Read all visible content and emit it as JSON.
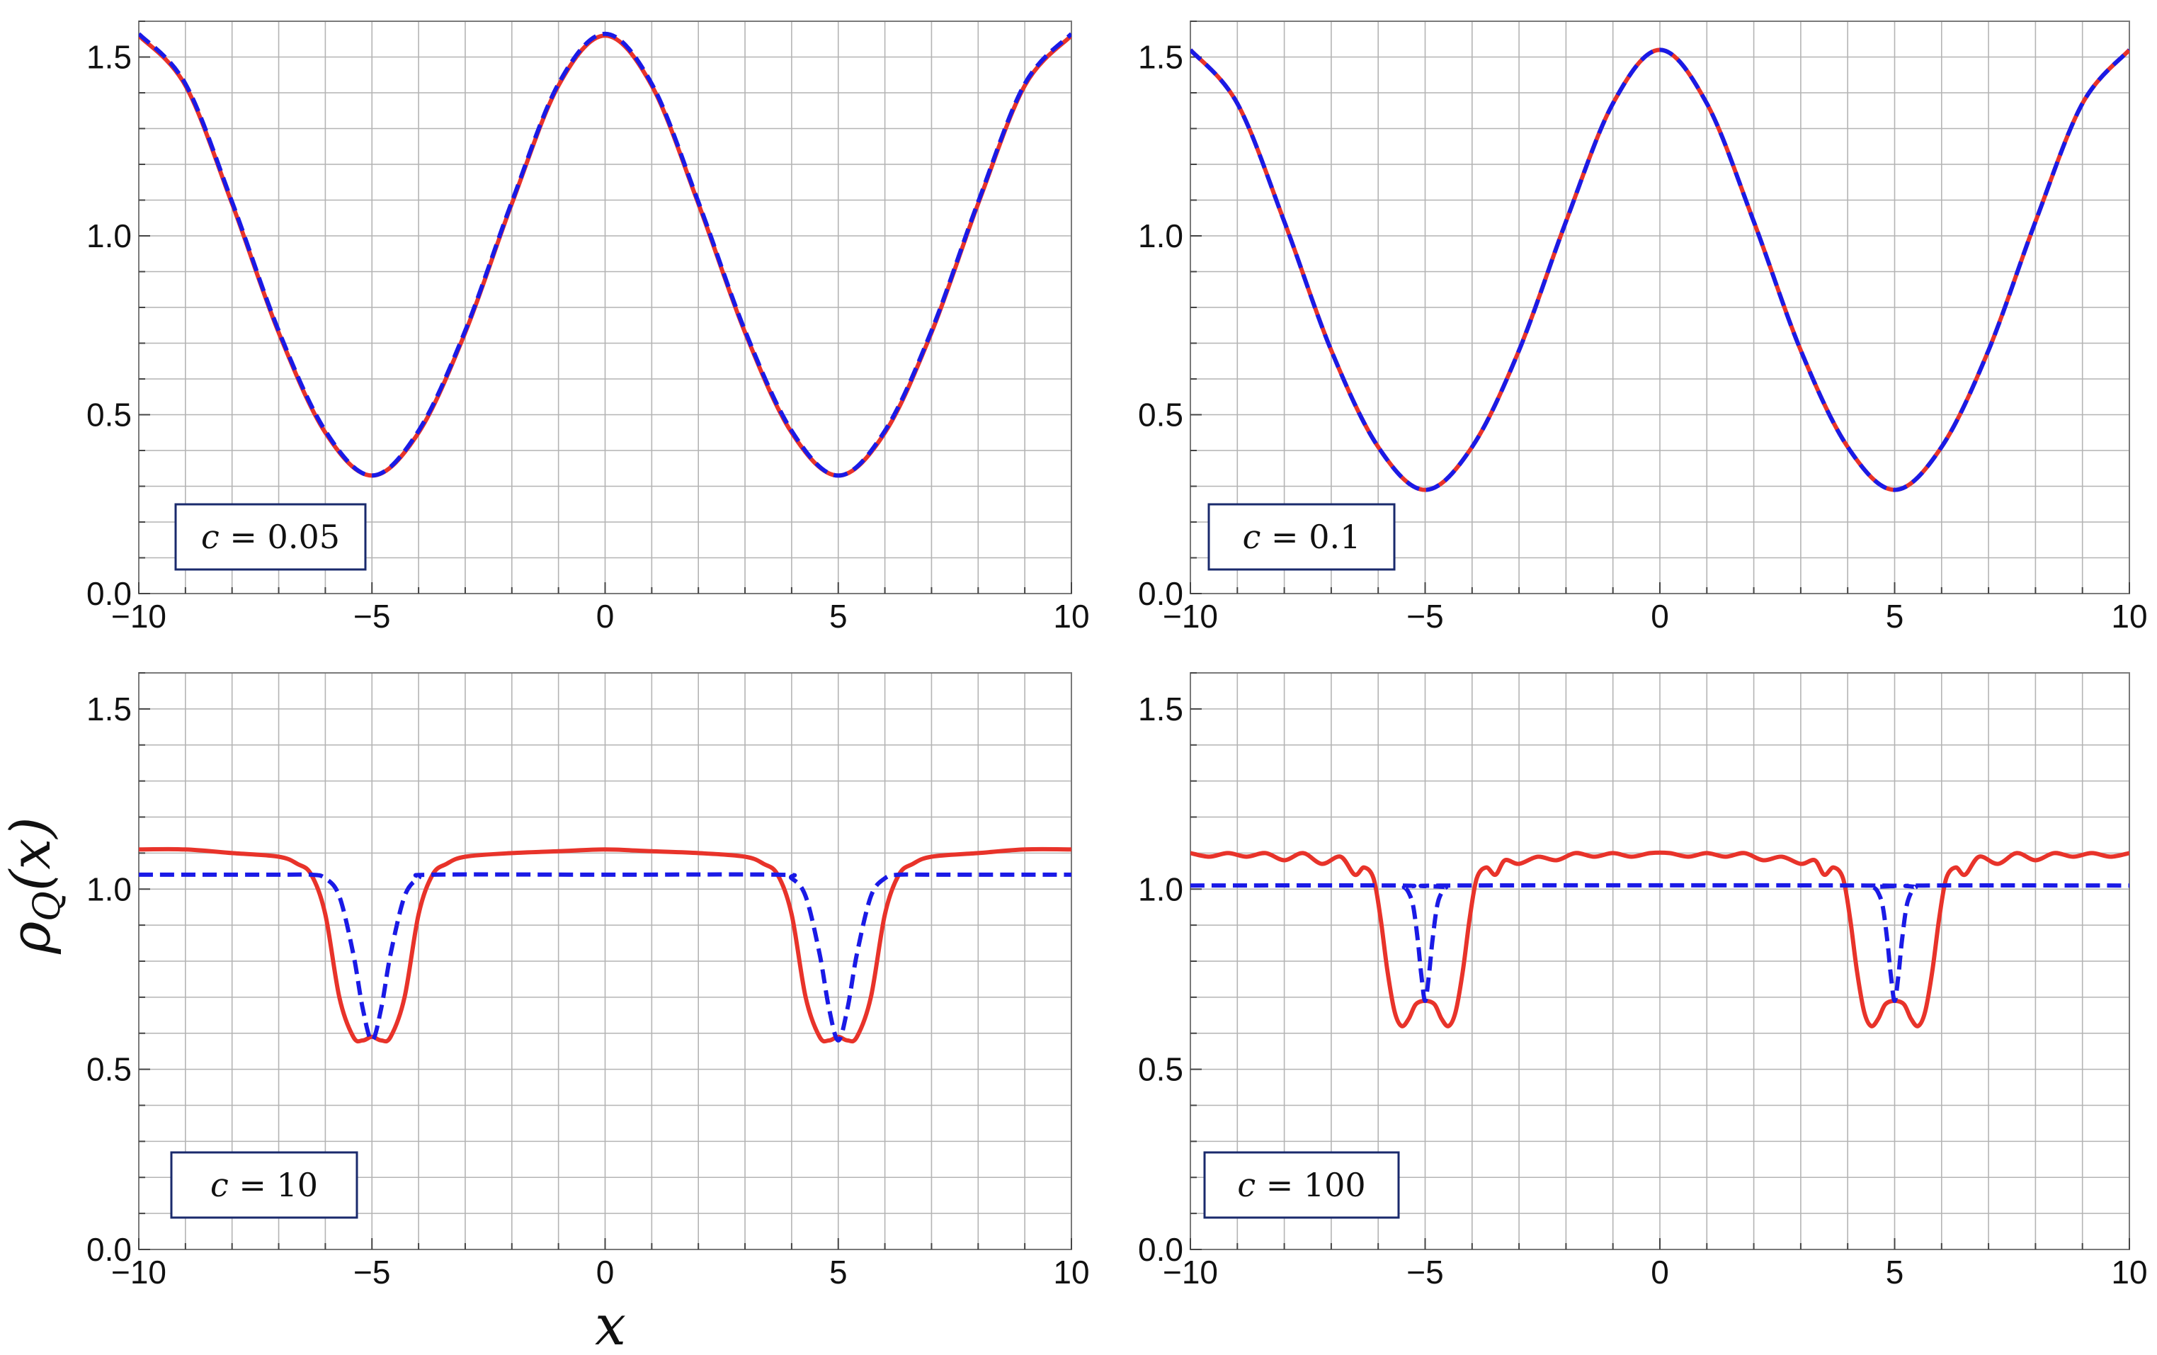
{
  "figure": {
    "shared_ylabel": "ρQ(x)",
    "shared_xlabel": "x",
    "colors": {
      "solid_series": "#e8332a",
      "dashed_series": "#1a1ae6",
      "grid": "#b4b4b4",
      "frame": "#7a7a7a",
      "label_box_border": "#1a2a6c"
    }
  },
  "chart_data": [
    {
      "type": "line",
      "panel": "top-left",
      "annotation": "c = 0.05",
      "xlim": [
        -10,
        10
      ],
      "ylim": [
        0,
        1.6
      ],
      "xticks": [
        -10,
        -5,
        0,
        5,
        10
      ],
      "xtick_labels": [
        "−10",
        "−5",
        "0",
        "5",
        "10"
      ],
      "yticks": [
        0,
        0.5,
        1,
        1.5
      ],
      "ytick_labels": [
        "0.0",
        "0.5",
        "1.0",
        "1.5"
      ],
      "grid": true,
      "series": [
        {
          "style": "solid",
          "x": [
            -10,
            -9,
            -8,
            -7,
            -6,
            -5,
            -4,
            -3,
            -2,
            -1,
            0,
            1,
            2,
            3,
            4,
            5,
            6,
            7,
            8,
            9,
            10
          ],
          "y": [
            1.56,
            1.42,
            1.09,
            0.73,
            0.45,
            0.33,
            0.45,
            0.73,
            1.09,
            1.42,
            1.56,
            1.42,
            1.09,
            0.73,
            0.45,
            0.33,
            0.45,
            0.73,
            1.09,
            1.42,
            1.56
          ]
        },
        {
          "style": "dashed",
          "x": [
            -10,
            -9,
            -8,
            -7,
            -6,
            -5,
            -4,
            -3,
            -2,
            -1,
            0,
            1,
            2,
            3,
            4,
            5,
            6,
            7,
            8,
            9,
            10
          ],
          "y": [
            1.565,
            1.425,
            1.095,
            0.735,
            0.455,
            0.33,
            0.455,
            0.735,
            1.095,
            1.425,
            1.565,
            1.425,
            1.095,
            0.735,
            0.455,
            0.33,
            0.455,
            0.735,
            1.095,
            1.425,
            1.565
          ]
        }
      ]
    },
    {
      "type": "line",
      "panel": "top-right",
      "annotation": "c = 0.1",
      "xlim": [
        -10,
        10
      ],
      "ylim": [
        0,
        1.6
      ],
      "xticks": [
        -10,
        -5,
        0,
        5,
        10
      ],
      "xtick_labels": [
        "−10",
        "−5",
        "0",
        "5",
        "10"
      ],
      "yticks": [
        0,
        0.5,
        1,
        1.5
      ],
      "ytick_labels": [
        "0.0",
        "0.5",
        "1.0",
        "1.5"
      ],
      "grid": true,
      "series": [
        {
          "style": "solid",
          "x": [
            -10,
            -9,
            -8,
            -7,
            -6,
            -5,
            -4,
            -3,
            -2,
            -1,
            0,
            1,
            2,
            3,
            4,
            5,
            6,
            7,
            8,
            9,
            10
          ],
          "y": [
            1.52,
            1.37,
            1.04,
            0.68,
            0.41,
            0.29,
            0.41,
            0.68,
            1.04,
            1.37,
            1.52,
            1.37,
            1.04,
            0.68,
            0.41,
            0.29,
            0.41,
            0.68,
            1.04,
            1.37,
            1.52
          ]
        },
        {
          "style": "dashed",
          "x": [
            -10,
            -9,
            -8,
            -7,
            -6,
            -5,
            -4,
            -3,
            -2,
            -1,
            0,
            1,
            2,
            3,
            4,
            5,
            6,
            7,
            8,
            9,
            10
          ],
          "y": [
            1.52,
            1.37,
            1.04,
            0.68,
            0.41,
            0.29,
            0.41,
            0.68,
            1.04,
            1.37,
            1.52,
            1.37,
            1.04,
            0.68,
            0.41,
            0.29,
            0.41,
            0.68,
            1.04,
            1.37,
            1.52
          ]
        }
      ]
    },
    {
      "type": "line",
      "panel": "bottom-left",
      "annotation": "c = 10",
      "xlim": [
        -10,
        10
      ],
      "ylim": [
        0,
        1.6
      ],
      "xticks": [
        -10,
        -5,
        0,
        5,
        10
      ],
      "xtick_labels": [
        "−10",
        "−5",
        "0",
        "5",
        "10"
      ],
      "yticks": [
        0,
        0.5,
        1,
        1.5
      ],
      "ytick_labels": [
        "0.0",
        "0.5",
        "1.0",
        "1.5"
      ],
      "grid": true,
      "series": [
        {
          "style": "solid",
          "x": [
            -10,
            -9,
            -8,
            -7,
            -6.6,
            -6.3,
            -6.0,
            -5.7,
            -5.4,
            -5.2,
            -5.0,
            -4.8,
            -4.6,
            -4.3,
            -4.0,
            -3.7,
            -3.4,
            -3.0,
            -2.0,
            -1.0,
            0,
            1.0,
            2.0,
            3.0,
            3.4,
            3.7,
            4.0,
            4.3,
            4.6,
            4.8,
            5.0,
            5.2,
            5.4,
            5.7,
            6.0,
            6.3,
            6.6,
            7,
            8,
            9,
            10
          ],
          "y": [
            1.11,
            1.11,
            1.1,
            1.09,
            1.07,
            1.04,
            0.93,
            0.7,
            0.59,
            0.58,
            0.59,
            0.58,
            0.59,
            0.7,
            0.93,
            1.04,
            1.07,
            1.09,
            1.1,
            1.105,
            1.11,
            1.105,
            1.1,
            1.09,
            1.07,
            1.04,
            0.93,
            0.7,
            0.59,
            0.58,
            0.59,
            0.58,
            0.59,
            0.7,
            0.93,
            1.04,
            1.07,
            1.09,
            1.1,
            1.11,
            1.11
          ]
        },
        {
          "style": "dashed",
          "x": [
            -10,
            -7,
            -6.3,
            -6.0,
            -5.7,
            -5.4,
            -5.2,
            -5.0,
            -4.8,
            -4.6,
            -4.3,
            -4.0,
            -3.7,
            0,
            3.7,
            4.0,
            4.3,
            4.6,
            4.8,
            5.0,
            5.2,
            5.4,
            5.7,
            6.0,
            6.3,
            7,
            10
          ],
          "y": [
            1.04,
            1.04,
            1.04,
            1.03,
            0.98,
            0.82,
            0.67,
            0.58,
            0.67,
            0.82,
            0.98,
            1.03,
            1.04,
            1.04,
            1.04,
            1.03,
            0.98,
            0.82,
            0.67,
            0.58,
            0.67,
            0.82,
            0.98,
            1.03,
            1.04,
            1.04,
            1.04
          ]
        }
      ]
    },
    {
      "type": "line",
      "panel": "bottom-right",
      "annotation": "c = 100",
      "xlim": [
        -10,
        10
      ],
      "ylim": [
        0,
        1.6
      ],
      "xticks": [
        -10,
        -5,
        0,
        5,
        10
      ],
      "xtick_labels": [
        "−10",
        "−5",
        "0",
        "5",
        "10"
      ],
      "yticks": [
        0,
        0.5,
        1,
        1.5
      ],
      "ytick_labels": [
        "0.0",
        "0.5",
        "1.0",
        "1.5"
      ],
      "grid": true,
      "series": [
        {
          "style": "solid",
          "x": [
            -10,
            -9.6,
            -9.2,
            -8.8,
            -8.4,
            -8.0,
            -7.6,
            -7.2,
            -6.8,
            -6.5,
            -6.3,
            -6.1,
            -5.95,
            -5.8,
            -5.65,
            -5.5,
            -5.35,
            -5.2,
            -5.0,
            -4.8,
            -4.65,
            -4.5,
            -4.35,
            -4.2,
            -4.05,
            -3.9,
            -3.7,
            -3.5,
            -3.3,
            -3.0,
            -2.6,
            -2.2,
            -1.8,
            -1.4,
            -1.0,
            -0.6,
            -0.2,
            0.2,
            0.6,
            1.0,
            1.4,
            1.8,
            2.2,
            2.6,
            3.0,
            3.3,
            3.5,
            3.7,
            3.9,
            4.05,
            4.2,
            4.35,
            4.5,
            4.65,
            4.8,
            5.0,
            5.2,
            5.35,
            5.5,
            5.65,
            5.8,
            5.95,
            6.1,
            6.3,
            6.5,
            6.8,
            7.2,
            7.6,
            8.0,
            8.4,
            8.8,
            9.2,
            9.6,
            10
          ],
          "y": [
            1.1,
            1.09,
            1.1,
            1.09,
            1.1,
            1.08,
            1.1,
            1.07,
            1.09,
            1.04,
            1.06,
            1.03,
            0.92,
            0.77,
            0.66,
            0.62,
            0.64,
            0.68,
            0.69,
            0.68,
            0.64,
            0.62,
            0.66,
            0.77,
            0.92,
            1.03,
            1.06,
            1.04,
            1.08,
            1.07,
            1.09,
            1.08,
            1.1,
            1.09,
            1.1,
            1.09,
            1.1,
            1.1,
            1.09,
            1.1,
            1.09,
            1.1,
            1.08,
            1.09,
            1.07,
            1.08,
            1.04,
            1.06,
            1.03,
            0.92,
            0.77,
            0.66,
            0.62,
            0.64,
            0.68,
            0.69,
            0.68,
            0.64,
            0.62,
            0.66,
            0.77,
            0.92,
            1.03,
            1.06,
            1.04,
            1.09,
            1.07,
            1.1,
            1.08,
            1.1,
            1.09,
            1.1,
            1.09,
            1.1
          ]
        },
        {
          "style": "dashed",
          "x": [
            -10,
            -5.6,
            -5.45,
            -5.35,
            -5.25,
            -5.15,
            -5.08,
            -5.0,
            -4.92,
            -4.85,
            -4.75,
            -4.65,
            -4.55,
            -4.4,
            4.4,
            4.55,
            4.65,
            4.75,
            4.85,
            4.92,
            5.0,
            5.08,
            5.15,
            5.25,
            5.35,
            5.45,
            5.6,
            10
          ],
          "y": [
            1.01,
            1.01,
            1.005,
            0.99,
            0.95,
            0.85,
            0.76,
            0.69,
            0.76,
            0.85,
            0.95,
            0.99,
            1.005,
            1.01,
            1.01,
            1.005,
            0.99,
            0.95,
            0.85,
            0.76,
            0.69,
            0.76,
            0.85,
            0.95,
            0.99,
            1.005,
            1.01,
            1.01
          ]
        }
      ]
    }
  ]
}
